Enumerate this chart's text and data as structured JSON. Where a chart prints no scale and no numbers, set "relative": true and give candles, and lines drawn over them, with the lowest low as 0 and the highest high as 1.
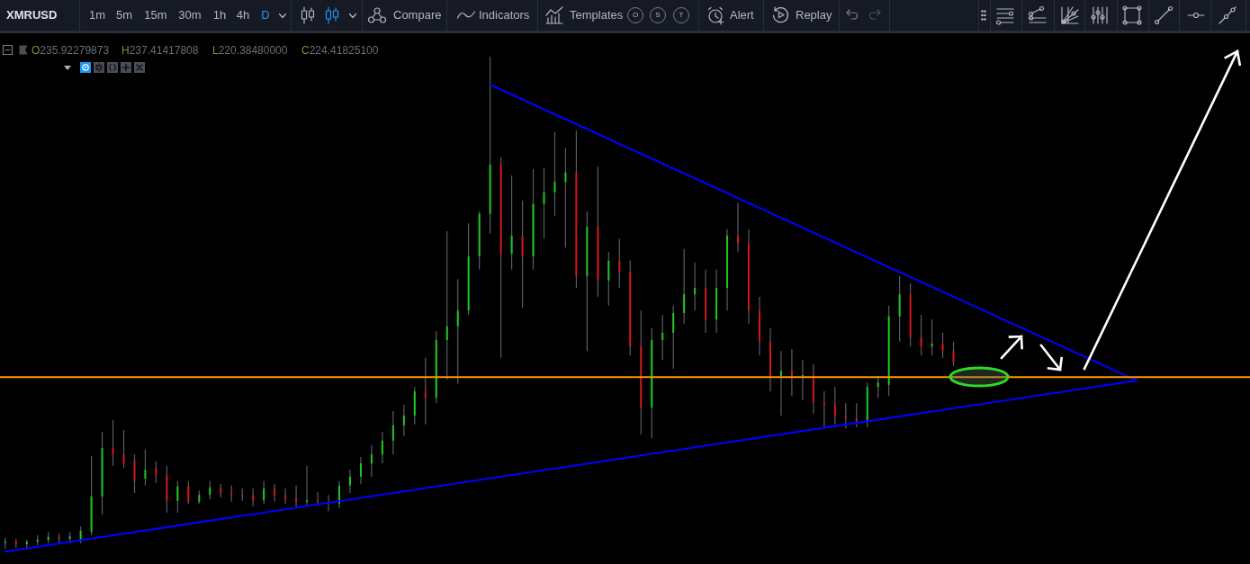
{
  "chart_data": {
    "type": "candlestick",
    "title": "XMRUSD",
    "relative": true,
    "tick_labels": false,
    "annotations": [
      "1m",
      "5m",
      "15m",
      "30m",
      "1h",
      "4h",
      "D",
      "Compare",
      "Indicators",
      "Templates",
      "O",
      "S",
      "T",
      "Alert",
      "Replay",
      "O235.92279873",
      "H237.41417808",
      "L220.38480000",
      "C224.41825100"
    ],
    "categories": [
      null,
      null,
      null,
      null,
      null,
      null,
      null,
      null,
      null,
      null,
      null,
      null,
      null,
      null,
      null,
      null,
      null,
      null,
      null,
      null,
      null,
      null,
      null,
      null,
      null,
      null,
      null,
      null,
      null,
      null,
      null,
      null,
      null,
      null,
      null,
      null,
      null,
      null,
      null,
      null,
      null,
      null,
      null,
      null,
      null,
      null,
      null,
      null,
      null,
      null,
      null,
      null,
      null,
      null,
      null,
      null,
      null,
      null,
      null,
      null,
      null,
      null,
      null,
      null,
      null,
      null,
      null,
      null,
      null,
      null,
      null,
      null,
      null,
      null,
      null,
      null,
      null,
      null,
      null,
      null,
      null,
      null,
      null,
      null,
      null,
      null,
      null,
      null,
      null,
      null,
      null,
      null,
      null,
      null,
      null,
      null,
      null,
      null,
      null,
      null,
      null,
      null,
      null,
      null,
      null,
      null,
      null,
      null,
      null,
      null,
      null,
      null,
      null,
      null,
      null,
      null
    ],
    "ohlc": [
      [
        0.013,
        0.024,
        0.002,
        0.016
      ],
      [
        0.015,
        0.022,
        0.004,
        0.011
      ],
      [
        0.011,
        0.02,
        0,
        0.016
      ],
      [
        0.016,
        0.029,
        0.009,
        0.02
      ],
      [
        0.02,
        0.035,
        0.013,
        0.026
      ],
      [
        0.026,
        0.033,
        0.011,
        0.022
      ],
      [
        0.022,
        0.036,
        0.013,
        0.027
      ],
      [
        0.02,
        0.047,
        0.013,
        0.038
      ],
      [
        0.036,
        0.19,
        0.029,
        0.108
      ],
      [
        0.108,
        0.239,
        0.071,
        0.206
      ],
      [
        0.206,
        0.263,
        0.17,
        0.193
      ],
      [
        0.193,
        0.243,
        0.166,
        0.175
      ],
      [
        0.181,
        0.193,
        0.115,
        0.139
      ],
      [
        0.144,
        0.203,
        0.13,
        0.162
      ],
      [
        0.166,
        0.179,
        0.135,
        0.151
      ],
      [
        0.151,
        0.17,
        0.075,
        0.099
      ],
      [
        0.099,
        0.139,
        0.075,
        0.128
      ],
      [
        0.128,
        0.139,
        0.093,
        0.097
      ],
      [
        0.097,
        0.12,
        0.093,
        0.111
      ],
      [
        0.111,
        0.139,
        0.102,
        0.126
      ],
      [
        0.126,
        0.133,
        0.106,
        0.115
      ],
      [
        0.115,
        0.13,
        0.097,
        0.111
      ],
      [
        0.111,
        0.124,
        0.099,
        0.11
      ],
      [
        0.11,
        0.124,
        0.088,
        0.1
      ],
      [
        0.1,
        0.139,
        0.093,
        0.124
      ],
      [
        0.124,
        0.133,
        0.097,
        0.11
      ],
      [
        0.11,
        0.124,
        0.093,
        0.102
      ],
      [
        0.102,
        0.13,
        0.084,
        0.097
      ],
      [
        0.097,
        0.17,
        0.089,
        0.1
      ],
      [
        0.1,
        0.117,
        0.089,
        0.097
      ],
      [
        0.097,
        0.111,
        0.078,
        0.093
      ],
      [
        0.093,
        0.139,
        0.084,
        0.13
      ],
      [
        0.13,
        0.162,
        0.115,
        0.148
      ],
      [
        0.148,
        0.188,
        0.133,
        0.175
      ],
      [
        0.175,
        0.212,
        0.148,
        0.193
      ],
      [
        0.193,
        0.239,
        0.175,
        0.221
      ],
      [
        0.221,
        0.281,
        0.193,
        0.252
      ],
      [
        0.252,
        0.294,
        0.23,
        0.272
      ],
      [
        0.272,
        0.33,
        0.254,
        0.321
      ],
      [
        0.321,
        0.389,
        0.254,
        0.308
      ],
      [
        0.308,
        0.443,
        0.297,
        0.425
      ],
      [
        0.425,
        0.646,
        0.345,
        0.453
      ],
      [
        0.453,
        0.549,
        0.336,
        0.485
      ],
      [
        0.485,
        0.662,
        0.476,
        0.595
      ],
      [
        0.595,
        0.686,
        0.568,
        0.681
      ],
      [
        0.681,
        1,
        0.641,
        0.781
      ],
      [
        0.781,
        0.796,
        0.389,
        0.6
      ],
      [
        0.6,
        0.759,
        0.568,
        0.637
      ],
      [
        0.637,
        0.708,
        0.491,
        0.595
      ],
      [
        0.595,
        0.772,
        0.568,
        0.701
      ],
      [
        0.701,
        0.774,
        0.631,
        0.725
      ],
      [
        0.725,
        0.847,
        0.677,
        0.746
      ],
      [
        0.746,
        0.814,
        0.613,
        0.765
      ],
      [
        0.765,
        0.85,
        0.531,
        0.555
      ],
      [
        0.555,
        0.686,
        0.403,
        0.655
      ],
      [
        0.655,
        0.777,
        0.513,
        0.546
      ],
      [
        0.546,
        0.604,
        0.495,
        0.586
      ],
      [
        0.586,
        0.631,
        0.531,
        0.562
      ],
      [
        0.562,
        0.586,
        0.394,
        0.412
      ],
      [
        0.412,
        0.485,
        0.234,
        0.288
      ],
      [
        0.288,
        0.449,
        0.226,
        0.425
      ],
      [
        0.425,
        0.476,
        0.385,
        0.44
      ],
      [
        0.44,
        0.495,
        0.367,
        0.48
      ],
      [
        0.48,
        0.61,
        0.458,
        0.518
      ],
      [
        0.518,
        0.582,
        0.485,
        0.531
      ],
      [
        0.531,
        0.568,
        0.44,
        0.467
      ],
      [
        0.467,
        0.568,
        0.44,
        0.531
      ],
      [
        0.531,
        0.65,
        0.485,
        0.637
      ],
      [
        0.637,
        0.704,
        0.604,
        0.622
      ],
      [
        0.622,
        0.65,
        0.458,
        0.485
      ],
      [
        0.485,
        0.513,
        0.394,
        0.422
      ],
      [
        0.422,
        0.449,
        0.321,
        0.352
      ],
      [
        0.352,
        0.403,
        0.272,
        0.363
      ],
      [
        0.363,
        0.407,
        0.312,
        0.352
      ],
      [
        0.352,
        0.385,
        0.303,
        0.354
      ],
      [
        0.354,
        0.376,
        0.276,
        0.299
      ],
      [
        0.299,
        0.321,
        0.248,
        0.294
      ],
      [
        0.294,
        0.33,
        0.254,
        0.27
      ],
      [
        0.27,
        0.297,
        0.246,
        0.266
      ],
      [
        0.266,
        0.297,
        0.248,
        0.261
      ],
      [
        0.261,
        0.339,
        0.248,
        0.33
      ],
      [
        0.33,
        0.352,
        0.308,
        0.339
      ],
      [
        0.334,
        0.495,
        0.312,
        0.473
      ],
      [
        0.473,
        0.555,
        0.422,
        0.518
      ],
      [
        0.518,
        0.54,
        0.412,
        0.431
      ],
      [
        0.431,
        0.476,
        0.394,
        0.412
      ],
      [
        0.412,
        0.467,
        0.394,
        0.418
      ],
      [
        0.418,
        0.44,
        0.389,
        0.403
      ],
      [
        0.403,
        0.422,
        0.372,
        0.38
      ],
      null,
      null,
      null,
      null,
      null,
      null,
      null,
      null,
      null,
      null,
      null,
      null,
      null,
      null,
      null,
      null,
      null,
      null,
      null,
      null,
      null,
      null,
      null,
      null,
      null,
      null,
      null
    ],
    "colors": [
      "#1ec81e",
      "#d0161d",
      "#1ec81e",
      "#1ec81e",
      "#1ec81e",
      "#d0161d",
      "#1ec81e",
      "#1ec81e",
      "#1ec81e",
      "#1ec81e",
      "#d0161d",
      "#d0161d",
      "#d0161d",
      "#1ec81e",
      "#d0161d",
      "#d0161d",
      "#1ec81e",
      "#d0161d",
      "#1ec81e",
      "#1ec81e",
      "#d0161d",
      "#d0161d",
      "#d0161d",
      "#d0161d",
      "#1ec81e",
      "#d0161d",
      "#d0161d",
      "#d0161d",
      "#1ec81e",
      "#d0161d",
      "#d0161d",
      "#1ec81e",
      "#1ec81e",
      "#1ec81e",
      "#1ec81e",
      "#1ec81e",
      "#1ec81e",
      "#1ec81e",
      "#1ec81e",
      "#d0161d",
      "#1ec81e",
      "#1ec81e",
      "#1ec81e",
      "#1ec81e",
      "#1ec81e",
      "#1ec81e",
      "#d0161d",
      "#1ec81e",
      "#d0161d",
      "#1ec81e",
      "#1ec81e",
      "#1ec81e",
      "#1ec81e",
      "#d0161d",
      "#1ec81e",
      "#d0161d",
      "#1ec81e",
      "#d0161d",
      "#d0161d",
      "#d0161d",
      "#1ec81e",
      "#1ec81e",
      "#1ec81e",
      "#1ec81e",
      "#1ec81e",
      "#d0161d",
      "#1ec81e",
      "#1ec81e",
      "#d0161d",
      "#d0161d",
      "#d0161d",
      "#d0161d",
      "#1ec81e",
      "#d0161d",
      "#1ec81e",
      "#d0161d",
      "#d0161d",
      "#d0161d",
      "#d0161d",
      "#d0161d",
      "#1ec81e",
      "#1ec81e",
      "#1ec81e",
      "#1ec81e",
      "#d0161d",
      "#d0161d",
      "#1ec81e",
      "#d0161d",
      "#d0161d",
      null,
      null,
      null,
      null,
      null,
      null,
      null,
      null,
      null,
      null,
      null,
      null,
      null,
      null,
      null,
      null,
      null,
      null,
      null,
      null,
      null,
      null,
      null,
      null,
      null,
      null,
      null
    ],
    "series": [
      {
        "type": "line",
        "color": "#0000ff",
        "values": [
          -0.004,
          null,
          null,
          null,
          null,
          null,
          null,
          null,
          null,
          null,
          null,
          null,
          null,
          null,
          null,
          null,
          null,
          null,
          null,
          null,
          null,
          null,
          null,
          null,
          null,
          null,
          null,
          null,
          null,
          null,
          null,
          null,
          null,
          null,
          null,
          null,
          null,
          null,
          null,
          null,
          null,
          null,
          null,
          null,
          null,
          null,
          null,
          null,
          null,
          null,
          null,
          null,
          null,
          null,
          null,
          null,
          null,
          null,
          null,
          null,
          null,
          null,
          null,
          null,
          null,
          null,
          null,
          null,
          null,
          null,
          null,
          null,
          null,
          null,
          null,
          null,
          null,
          null,
          null,
          null,
          null,
          null,
          null,
          null,
          null,
          null,
          null,
          null,
          null,
          null,
          null,
          null,
          null,
          null,
          null,
          null,
          null,
          null,
          null,
          null,
          null,
          null,
          null,
          null,
          null,
          0.343,
          null,
          null,
          null,
          null,
          null,
          null,
          null,
          null,
          null,
          null
        ]
      },
      {
        "type": "line",
        "color": "#0000ff",
        "values": [
          null,
          null,
          null,
          null,
          null,
          null,
          null,
          null,
          null,
          null,
          null,
          null,
          null,
          null,
          null,
          null,
          null,
          null,
          null,
          null,
          null,
          null,
          null,
          null,
          null,
          null,
          null,
          null,
          null,
          null,
          null,
          null,
          null,
          null,
          null,
          null,
          null,
          null,
          null,
          null,
          null,
          null,
          null,
          null,
          null,
          0.943,
          null,
          null,
          null,
          null,
          null,
          null,
          null,
          null,
          null,
          null,
          null,
          null,
          null,
          null,
          null,
          null,
          null,
          null,
          null,
          null,
          null,
          null,
          null,
          null,
          null,
          null,
          null,
          null,
          null,
          null,
          null,
          null,
          null,
          null,
          null,
          null,
          null,
          null,
          null,
          null,
          null,
          null,
          null,
          null,
          null,
          null,
          null,
          null,
          null,
          null,
          null,
          null,
          null,
          null,
          null,
          null,
          null,
          null,
          null,
          0.343,
          null,
          null,
          null,
          null,
          null,
          null,
          null,
          null,
          null,
          null
        ]
      }
    ],
    "ref_lines": [
      {
        "axis": "y",
        "value": 0.35,
        "color": "#ff9800"
      }
    ]
  }
}
